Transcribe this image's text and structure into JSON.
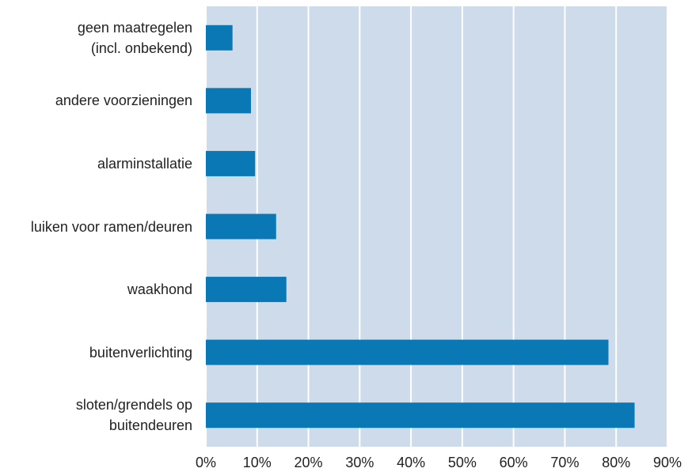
{
  "chart_data": {
    "type": "bar",
    "orientation": "horizontal",
    "categories": [
      "geen maatregelen\n(incl. onbekend)",
      "andere voorzieningen",
      "alarminstallatie",
      "luiken voor ramen/deuren",
      "waakhond",
      "buitenverlichting",
      "sloten/grendels op\nbuitendeuren"
    ],
    "values": [
      5.2,
      8.8,
      9.6,
      13.7,
      15.7,
      78.5,
      83.6
    ],
    "color": "#0a78b4",
    "xlim": [
      0,
      90
    ],
    "xticks": [
      {
        "value": 0,
        "label": "0%"
      },
      {
        "value": 10,
        "label": "10%"
      },
      {
        "value": 20,
        "label": "20%"
      },
      {
        "value": 30,
        "label": "30%"
      },
      {
        "value": 40,
        "label": "40%"
      },
      {
        "value": 50,
        "label": "50%"
      },
      {
        "value": 60,
        "label": "60%"
      },
      {
        "value": 70,
        "label": "70%"
      },
      {
        "value": 80,
        "label": "80%"
      },
      {
        "value": 90,
        "label": "90%"
      }
    ],
    "grid": true
  }
}
